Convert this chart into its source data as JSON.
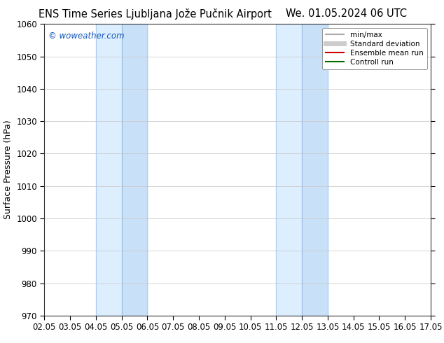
{
  "title_left": "ENS Time Series Ljubljana Jože Pučnik Airport",
  "title_right": "We. 01.05.2024 06 UTC",
  "ylabel": "Surface Pressure (hPa)",
  "ylim": [
    970,
    1060
  ],
  "yticks": [
    970,
    980,
    990,
    1000,
    1010,
    1020,
    1030,
    1040,
    1050,
    1060
  ],
  "xtick_labels": [
    "02.05",
    "03.05",
    "04.05",
    "05.05",
    "06.05",
    "07.05",
    "08.05",
    "09.05",
    "10.05",
    "11.05",
    "12.05",
    "13.05",
    "14.05",
    "15.05",
    "16.05",
    "17.05"
  ],
  "shaded_bands": [
    {
      "xstart": 2,
      "xend": 4,
      "color": "#ddeeff"
    },
    {
      "xstart": 9,
      "xend": 11,
      "color": "#ddeeff"
    }
  ],
  "shaded_band_inner": [
    {
      "xstart": 3,
      "xend": 4,
      "color": "#c8e0f8"
    },
    {
      "xstart": 10,
      "xend": 11,
      "color": "#c8e0f8"
    }
  ],
  "vertical_lines_light": [
    2,
    4,
    9,
    11
  ],
  "vertical_lines_dark": [
    3,
    10
  ],
  "legend_entries": [
    {
      "label": "min/max",
      "color": "#aaaaaa",
      "lw": 1.5
    },
    {
      "label": "Standard deviation",
      "color": "#cccccc",
      "lw": 6
    },
    {
      "label": "Ensemble mean run",
      "color": "#cc0000",
      "lw": 1.5
    },
    {
      "label": "Controll run",
      "color": "#006600",
      "lw": 1.5
    }
  ],
  "watermark": "© woweather.com",
  "watermark_color": "#1155bb",
  "bg_color": "#ffffff",
  "plot_bg_color": "#ffffff",
  "grid_color": "#cccccc",
  "title_fontsize": 10.5,
  "ylabel_fontsize": 9,
  "tick_fontsize": 8.5,
  "legend_fontsize": 7.5
}
